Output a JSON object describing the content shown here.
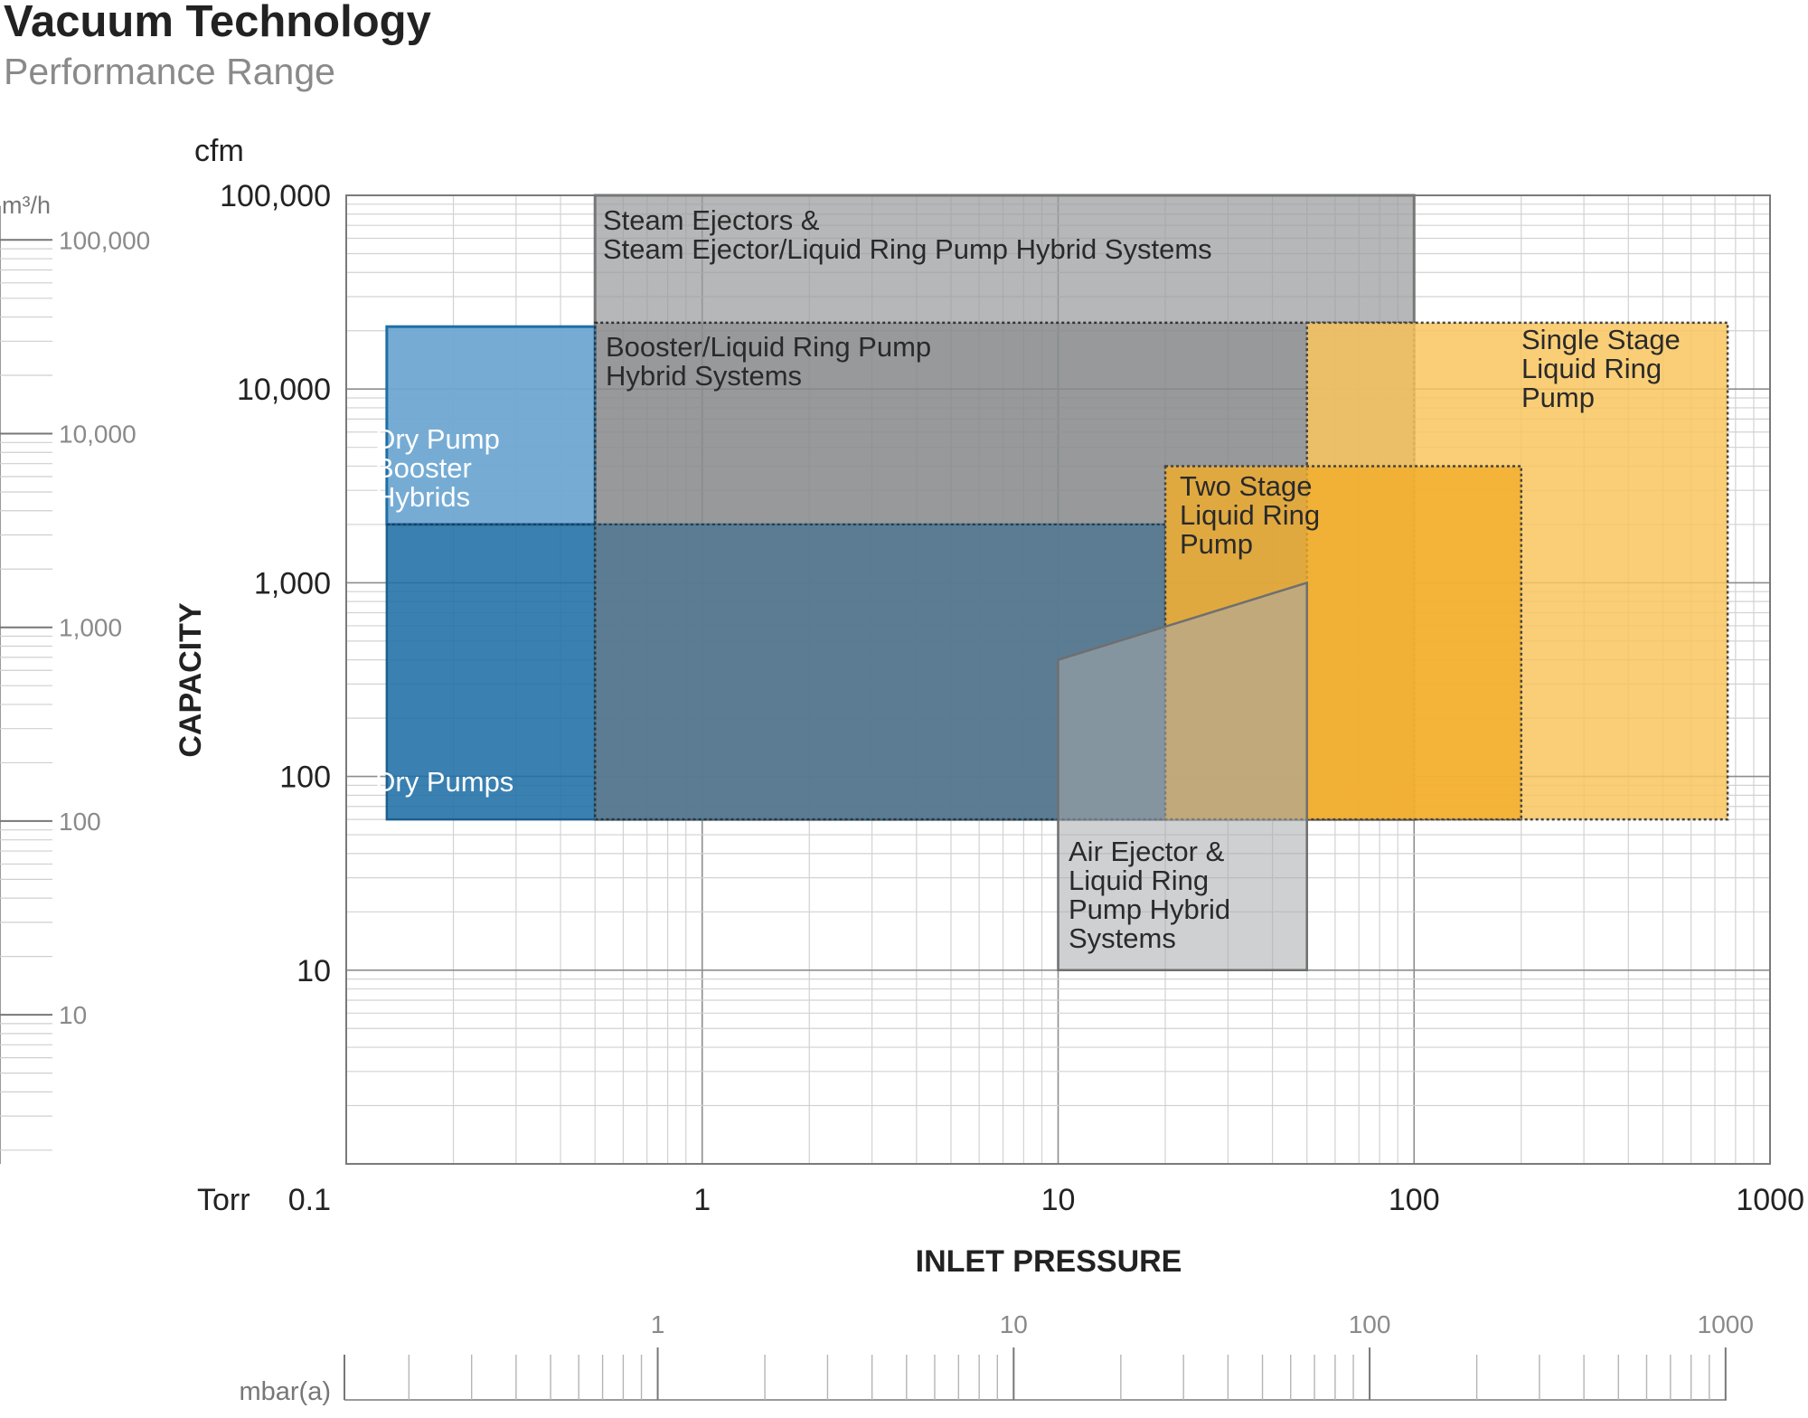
{
  "title": "Vacuum Technology",
  "subtitle": "Performance Range",
  "chart_data": {
    "type": "area",
    "ylabel": "CAPACITY",
    "xlabel": "INLET PRESSURE",
    "y_unit": "cfm",
    "x_unit": "Torr",
    "secondary_y_unit": "m³/h",
    "secondary_x_unit": "mbar(a)",
    "xscale": "log",
    "yscale": "log",
    "xlim": [
      0.1,
      1000
    ],
    "ylim": [
      1,
      100000
    ],
    "grid": true,
    "x_ticks": [
      "0.1",
      "1",
      "10",
      "100",
      "1000"
    ],
    "y_ticks": [
      "10",
      "100",
      "1,000",
      "10,000",
      "100,000"
    ],
    "secondary_y_ticks": [
      "10",
      "100",
      "1,000",
      "10,000",
      "100,000"
    ],
    "secondary_x_ticks": [
      "1",
      "10",
      "100",
      "1000"
    ],
    "series": [
      {
        "name": "Steam Ejectors & Steam Ejector/Liquid Ring Pump Hybrid Systems",
        "label_lines": [
          "Steam Ejectors &",
          "Steam Ejector/Liquid Ring Pump Hybrid Systems"
        ],
        "x_range": [
          0.5,
          100
        ],
        "y_range": [
          60,
          100000
        ],
        "color": "#9a9b9d"
      },
      {
        "name": "Booster/Liquid Ring Pump Hybrid Systems",
        "label_lines": [
          "Booster/Liquid Ring Pump",
          "Hybrid Systems"
        ],
        "x_range": [
          0.5,
          100
        ],
        "y_range": [
          60,
          22000
        ],
        "color": "#7e8182"
      },
      {
        "name": "Dry Pump Booster Hybrids",
        "label_lines": [
          "Dry Pump",
          "Booster",
          "Hybrids"
        ],
        "x_range": [
          0.13,
          0.5
        ],
        "y_range": [
          2000,
          21000
        ],
        "color": "#6fa8d2"
      },
      {
        "name": "Dry Pumps",
        "label_lines": [
          "Dry Pumps"
        ],
        "x_range": [
          0.13,
          20
        ],
        "y_range": [
          60,
          2000
        ],
        "color": "#1f6ea6"
      },
      {
        "name": "Single Stage Liquid Ring Pump",
        "label_lines": [
          "Single Stage",
          "Liquid Ring",
          "Pump"
        ],
        "x_range": [
          50,
          760
        ],
        "y_range": [
          60,
          22000
        ],
        "color": "#f8c55f"
      },
      {
        "name": "Two Stage Liquid Ring Pump",
        "label_lines": [
          "Two Stage",
          "Liquid Ring",
          "Pump"
        ],
        "x_range": [
          20,
          200
        ],
        "y_range": [
          60,
          4000
        ],
        "color": "#f3ad29"
      },
      {
        "name": "Air Ejector & Liquid Ring Pump Hybrid Systems",
        "label_lines": [
          "Air Ejector &",
          "Liquid Ring",
          "Pump Hybrid",
          "Systems"
        ],
        "x_range": [
          10,
          50
        ],
        "y_range": [
          10,
          1000
        ],
        "color": "#8f9193"
      }
    ]
  }
}
